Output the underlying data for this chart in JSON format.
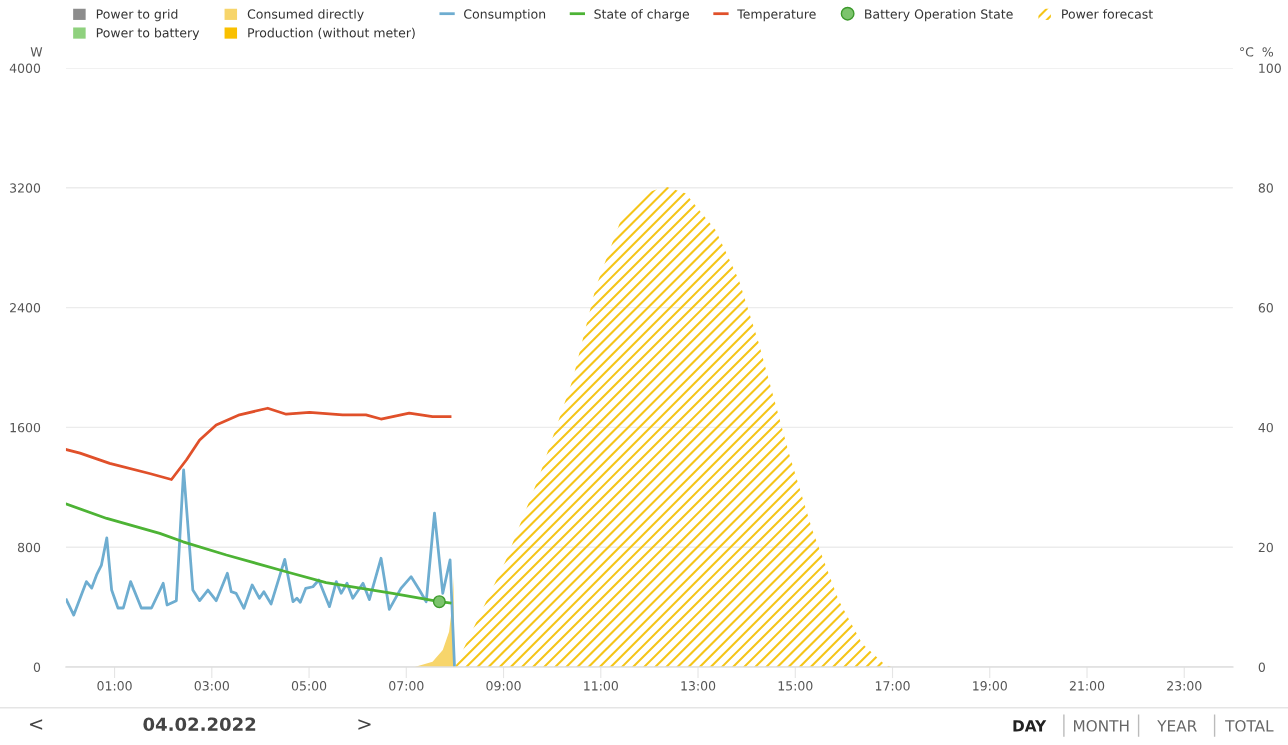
{
  "chart_data": {
    "type": "line",
    "ylabel": "W",
    "y2label": "°C  %",
    "xlim": [
      0,
      24
    ],
    "xticks": [
      {
        "value": 1,
        "label": "01:00"
      },
      {
        "value": 3,
        "label": "03:00"
      },
      {
        "value": 5,
        "label": "05:00"
      },
      {
        "value": 7,
        "label": "07:00"
      },
      {
        "value": 9,
        "label": "09:00"
      },
      {
        "value": 11,
        "label": "11:00"
      },
      {
        "value": 13,
        "label": "13:00"
      },
      {
        "value": 15,
        "label": "15:00"
      },
      {
        "value": 17,
        "label": "17:00"
      },
      {
        "value": 19,
        "label": "19:00"
      },
      {
        "value": 21,
        "label": "21:00"
      },
      {
        "value": 23,
        "label": "23:00"
      }
    ],
    "ylim": [
      0,
      4000
    ],
    "yticks": [
      0,
      800,
      1600,
      2400,
      3200,
      4000
    ],
    "y2lim": [
      0,
      100
    ],
    "y2ticks": [
      0,
      20,
      40,
      60,
      80,
      100
    ],
    "grid": "y",
    "legend": "top",
    "series": [
      {
        "name": "Power to grid",
        "type": "area",
        "color": "#8c8c8c"
      },
      {
        "name": "Power to battery",
        "type": "area",
        "color": "#8fd17e"
      },
      {
        "name": "Consumed directly",
        "type": "area",
        "color": "#f7d56b",
        "x": [
          7.17,
          7.54,
          7.75,
          7.88,
          7.95,
          7.97,
          7.99
        ],
        "values": [
          0,
          35,
          113,
          236,
          427,
          603,
          0
        ]
      },
      {
        "name": "Production (without meter)",
        "type": "area",
        "color": "#f9c000"
      },
      {
        "name": "Consumption",
        "color": "#6eadd0",
        "x": [
          0.01,
          0.16,
          0.42,
          0.53,
          0.63,
          0.73,
          0.84,
          0.94,
          1.07,
          1.18,
          1.33,
          1.55,
          1.76,
          2.0,
          2.08,
          2.27,
          2.42,
          2.61,
          2.75,
          2.92,
          3.09,
          3.32,
          3.4,
          3.5,
          3.66,
          3.83,
          3.98,
          4.07,
          4.22,
          4.5,
          4.67,
          4.75,
          4.82,
          4.93,
          5.08,
          5.2,
          5.42,
          5.56,
          5.66,
          5.78,
          5.9,
          6.11,
          6.24,
          6.48,
          6.65,
          6.89,
          7.1,
          7.27,
          7.41,
          7.58,
          7.75,
          7.9,
          7.99
        ],
        "values": [
          448,
          347,
          570,
          527,
          615,
          681,
          862,
          514,
          394,
          394,
          570,
          394,
          394,
          559,
          414,
          443,
          1316,
          514,
          443,
          514,
          443,
          626,
          503,
          492,
          392,
          548,
          459,
          503,
          421,
          719,
          436,
          459,
          432,
          525,
          536,
          581,
          403,
          570,
          492,
          559,
          459,
          559,
          450,
          726,
          385,
          525,
          603,
          514,
          436,
          1027,
          492,
          715,
          13
        ]
      },
      {
        "name": "State of charge",
        "axis": "y2",
        "color": "#4db335",
        "x": [
          0.01,
          0.84,
          1.93,
          2.41,
          3.3,
          4.53,
          5.35,
          6.72,
          7.68,
          7.9
        ],
        "values": [
          27.2,
          24.8,
          22.3,
          20.9,
          18.7,
          15.9,
          14.1,
          12.3,
          10.9,
          10.7
        ]
      },
      {
        "name": "Temperature",
        "axis": "y2",
        "color": "#e0502a",
        "x": [
          0.01,
          0.29,
          0.9,
          1.72,
          2.17,
          2.48,
          2.75,
          3.09,
          3.57,
          4.15,
          4.53,
          5.01,
          5.69,
          6.17,
          6.48,
          7.06,
          7.54,
          7.9
        ],
        "values": [
          36.3,
          35.7,
          34.0,
          32.3,
          31.3,
          34.6,
          37.9,
          40.4,
          42.1,
          43.2,
          42.2,
          42.5,
          42.1,
          42.1,
          41.4,
          42.4,
          41.8,
          41.8
        ]
      },
      {
        "name": "Battery Operation State",
        "type": "scatter",
        "axis": "y2",
        "marker": "circle",
        "color": "#7cc46c",
        "x": [
          7.68
        ],
        "values": [
          10.9
        ]
      },
      {
        "name": "Power forecast",
        "type": "area",
        "color": "#f5c518",
        "x": [
          8.02,
          9.05,
          9.73,
          10.42,
          10.9,
          11.44,
          11.92,
          12.33,
          12.74,
          13.36,
          13.84,
          14.25,
          14.87,
          15.35,
          15.89,
          16.37,
          16.85,
          17.0
        ],
        "values": [
          13,
          715,
          1271,
          1917,
          2540,
          3008,
          3164,
          3208,
          3164,
          2919,
          2585,
          2162,
          1427,
          915,
          448,
          158,
          13,
          0
        ]
      }
    ],
    "annotations": [
      "<",
      "04.02.2022",
      ">",
      "DAY",
      "MONTH",
      "YEAR",
      "TOTAL"
    ]
  }
}
